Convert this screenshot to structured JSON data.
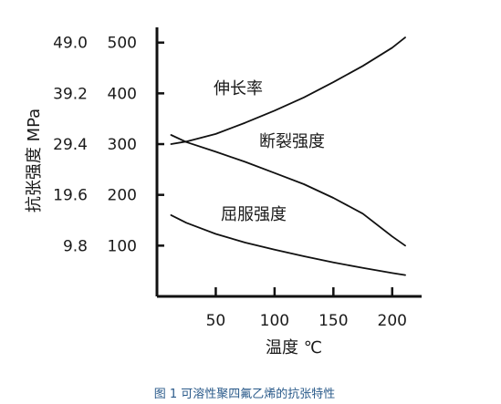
{
  "chart_data": {
    "type": "line",
    "caption": "图 1 可溶性聚四氟乙烯的抗张特性",
    "xlabel": "温度 ℃",
    "ylabel": "抗张强度 MPa",
    "xlim": [
      0,
      225
    ],
    "ylim": [
      0,
      530
    ],
    "x_ticks": [
      "50",
      "100",
      "150",
      "200"
    ],
    "y_ticks_left": [
      "9.8",
      "19.6",
      "29.4",
      "39.2",
      "49.0"
    ],
    "y_ticks_right": [
      "100",
      "200",
      "300",
      "400",
      "500"
    ],
    "series": [
      {
        "name": "伸长率",
        "x": [
          12,
          25,
          50,
          75,
          100,
          125,
          150,
          175,
          200,
          211
        ],
        "y": [
          300,
          305,
          320,
          342,
          366,
          392,
          422,
          454,
          490,
          510
        ]
      },
      {
        "name": "断裂强度",
        "x": [
          12,
          25,
          50,
          75,
          100,
          125,
          150,
          175,
          200,
          211
        ],
        "y": [
          318,
          304,
          285,
          265,
          243,
          221,
          194,
          163,
          118,
          100
        ]
      },
      {
        "name": "屈服强度",
        "x": [
          12,
          25,
          50,
          75,
          100,
          125,
          150,
          175,
          200,
          211
        ],
        "y": [
          160,
          145,
          123,
          106,
          92,
          79,
          67,
          56,
          46,
          42
        ]
      }
    ],
    "grid": false,
    "legend": "labels placed next to curves"
  }
}
